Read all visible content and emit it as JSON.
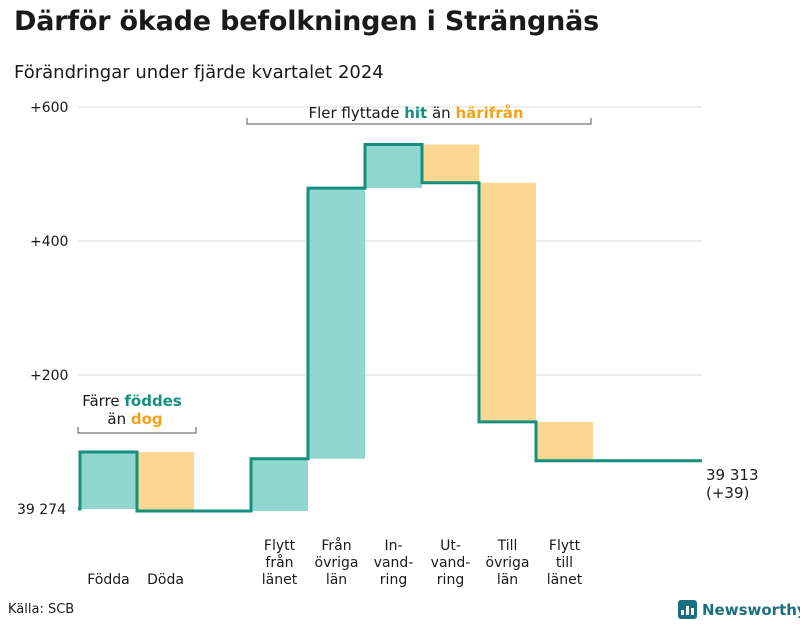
{
  "title": "Därför ökade befolkningen i Strängnäs",
  "subtitle": "Förändringar under fjärde kvartalet 2024",
  "source": "Källa: SCB",
  "brand": "Newsworthy",
  "colors": {
    "increase_fill": "#8fd7cf",
    "decrease_fill": "#fcd793",
    "line": "#15907f",
    "teal_text": "#15907f",
    "orange_text": "#f4a21c",
    "grid": "#dddddd"
  },
  "chart_data": {
    "type": "waterfall",
    "start_label": "39 274",
    "end_label": "39 313",
    "end_change_label": "(+39)",
    "ytick_labels": [
      "+200",
      "+400",
      "+600"
    ],
    "yticks": [
      200,
      400,
      600
    ],
    "ylim": [
      0,
      600
    ],
    "steps": [
      {
        "label": "Födda",
        "delta": 85
      },
      {
        "label": "Döda",
        "delta": -88
      },
      {
        "label": "",
        "delta": 0
      },
      {
        "label": "Flytt från länet",
        "delta": 78
      },
      {
        "label": "Från övriga län",
        "delta": 404
      },
      {
        "label": "In- vand- ring",
        "delta": 65
      },
      {
        "label": "Ut- vand- ring",
        "delta": -57
      },
      {
        "label": "Till övriga län",
        "delta": -357
      },
      {
        "label": "Flytt till länet",
        "delta": -58
      }
    ],
    "annotations": [
      {
        "line1_a": "Färre ",
        "line1_b": "föddes",
        "line2_a": "än ",
        "line2_b": "dog"
      },
      {
        "a": "Fler flyttade ",
        "b": "hit",
        "c": " än ",
        "d": "härifrån"
      }
    ]
  }
}
